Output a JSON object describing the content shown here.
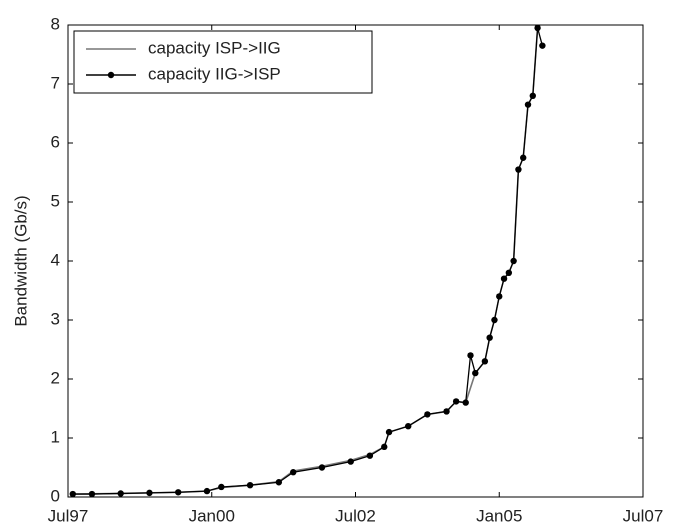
{
  "chart_data": {
    "type": "line",
    "y_label": "Bandwidth (Gb/s)",
    "xlim": [
      "1997-07",
      "2007-07"
    ],
    "xticks": [
      {
        "value": "1997-07",
        "label": "Jul97"
      },
      {
        "value": "2000-01",
        "label": "Jan00"
      },
      {
        "value": "2002-07",
        "label": "Jul02"
      },
      {
        "value": "2005-01",
        "label": "Jan05"
      },
      {
        "value": "2007-07",
        "label": "Jul07"
      }
    ],
    "ylim": [
      0,
      8
    ],
    "yticks": [
      0,
      1,
      2,
      3,
      4,
      5,
      6,
      7,
      8
    ],
    "legend": "upper left",
    "series": [
      {
        "name": "capacity ISP->IIG",
        "color": "#777777",
        "marker": false,
        "x": [
          "1997-08",
          "1998-06",
          "1999-06",
          "1999-12",
          "2000-03",
          "2000-09",
          "2001-03",
          "2001-06",
          "2001-12",
          "2002-06",
          "2002-10",
          "2003-01",
          "2003-02",
          "2003-06",
          "2003-10",
          "2004-02",
          "2004-04",
          "2004-06",
          "2004-08",
          "2004-10",
          "2004-11",
          "2004-12",
          "2005-01",
          "2005-02",
          "2005-03",
          "2005-04",
          "2005-05",
          "2005-06",
          "2005-07",
          "2005-08",
          "2005-09"
        ],
        "values": [
          0.05,
          0.06,
          0.08,
          0.1,
          0.16,
          0.2,
          0.26,
          0.44,
          0.52,
          0.62,
          0.72,
          0.85,
          1.1,
          1.2,
          1.4,
          1.45,
          1.62,
          1.6,
          2.1,
          2.3,
          2.7,
          3.0,
          3.4,
          3.7,
          3.8,
          4.0,
          5.55,
          5.75,
          6.65,
          6.8,
          7.95
        ]
      },
      {
        "name": "capacity IIG->ISP",
        "color": "#000000",
        "marker": true,
        "x": [
          "1997-08",
          "1997-12",
          "1998-06",
          "1998-12",
          "1999-06",
          "1999-12",
          "2000-03",
          "2000-09",
          "2001-03",
          "2001-06",
          "2001-12",
          "2002-06",
          "2002-10",
          "2003-01",
          "2003-02",
          "2003-06",
          "2003-10",
          "2004-02",
          "2004-04",
          "2004-06",
          "2004-07",
          "2004-08",
          "2004-10",
          "2004-11",
          "2004-12",
          "2005-01",
          "2005-02",
          "2005-03",
          "2005-04",
          "2005-05",
          "2005-06",
          "2005-07",
          "2005-08",
          "2005-09",
          "2005-10"
        ],
        "values": [
          0.05,
          0.05,
          0.06,
          0.07,
          0.08,
          0.1,
          0.17,
          0.2,
          0.25,
          0.42,
          0.5,
          0.6,
          0.7,
          0.85,
          1.1,
          1.2,
          1.4,
          1.45,
          1.62,
          1.6,
          2.4,
          2.1,
          2.3,
          2.7,
          3.0,
          3.4,
          3.7,
          3.8,
          4.0,
          5.55,
          5.75,
          6.65,
          6.8,
          7.95,
          7.65
        ]
      }
    ]
  }
}
